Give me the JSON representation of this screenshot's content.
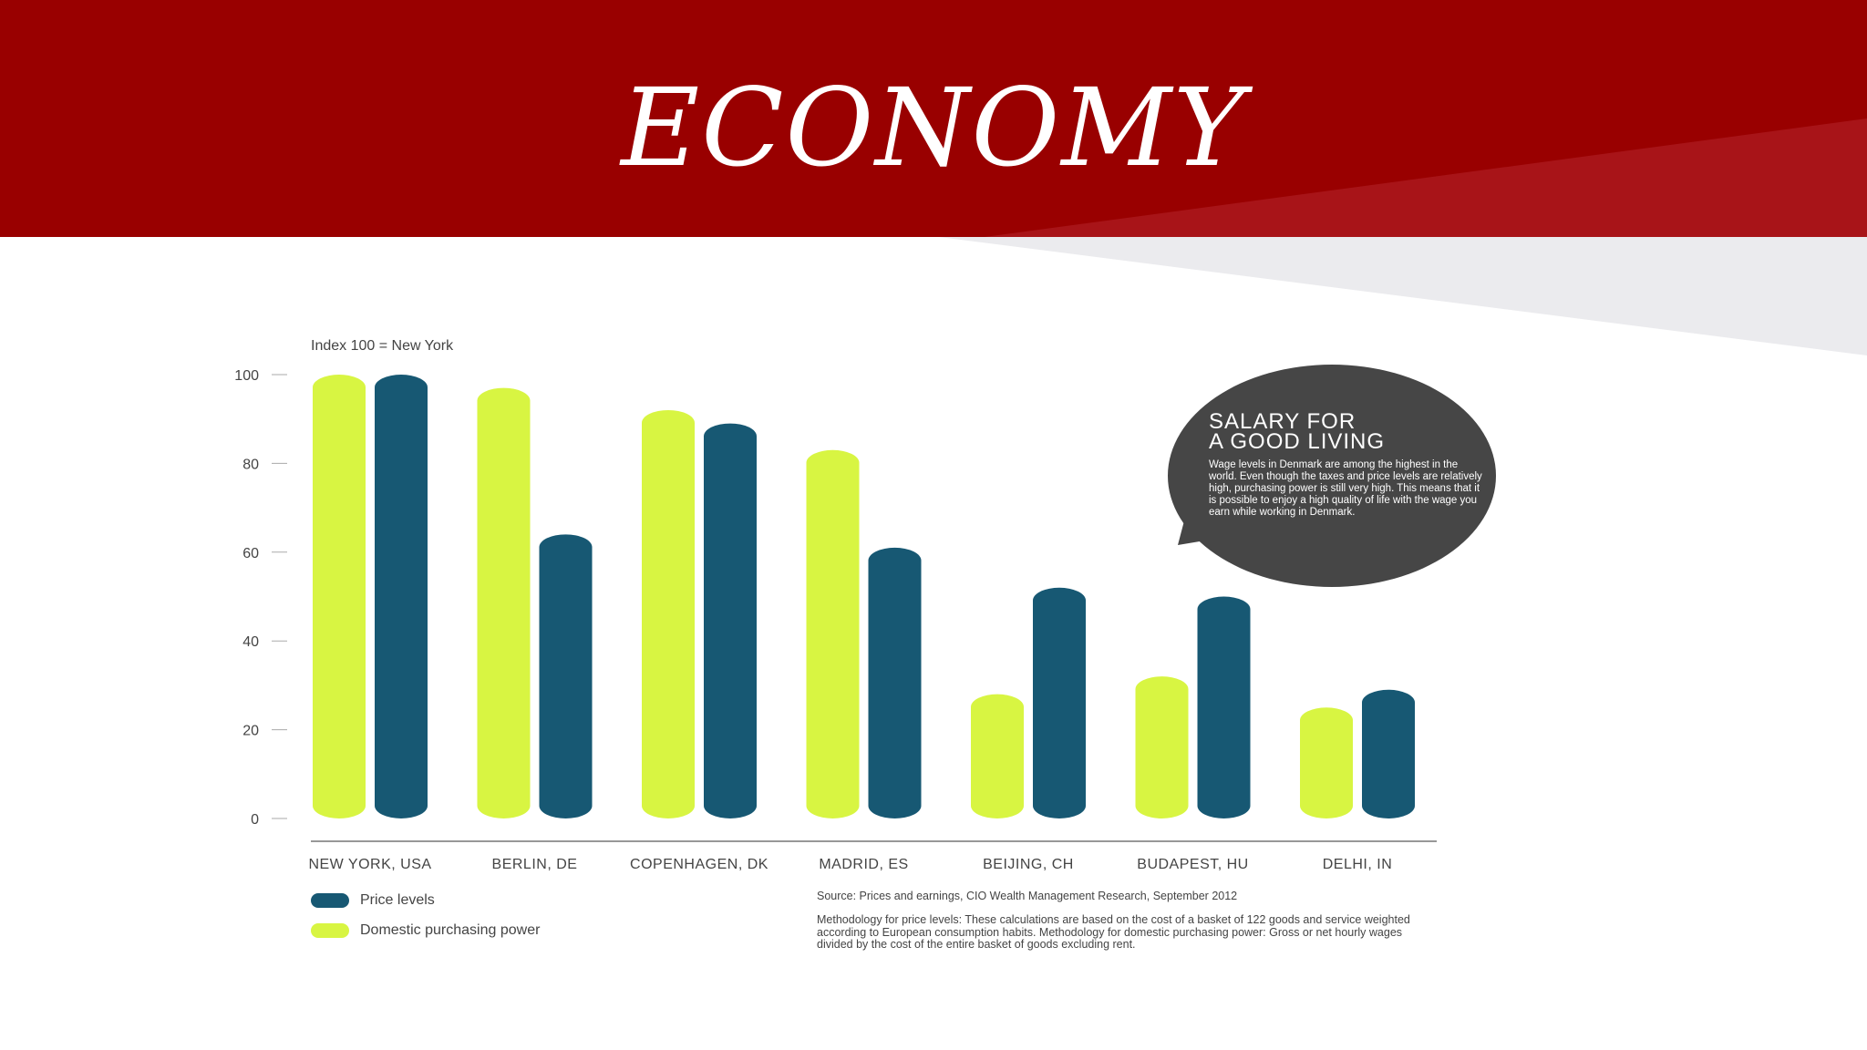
{
  "slide": {
    "title": "ECONOMY"
  },
  "chart_data": {
    "type": "bar",
    "title": "",
    "index_note": "Index 100 = New York",
    "categories": [
      "NEW YORK, USA",
      "BERLIN, DE",
      "COPENHAGEN, DK",
      "MADRID, ES",
      "BEIJING, CH",
      "BUDAPEST, HU",
      "DELHI, IN"
    ],
    "series": [
      {
        "name": "Domestic purchasing power",
        "color": "#d8f542",
        "values": [
          100,
          97,
          92,
          83,
          28,
          32,
          25
        ]
      },
      {
        "name": "Price levels",
        "color": "#175873",
        "values": [
          100,
          64,
          89,
          61,
          52,
          50,
          29
        ]
      }
    ],
    "yticks": [
      0,
      20,
      40,
      60,
      80,
      100
    ],
    "ylim": [
      0,
      100
    ],
    "xlabel": "",
    "ylabel": "",
    "grid": false,
    "legend": [
      {
        "label": "Price levels",
        "color": "#175873"
      },
      {
        "label": "Domestic purchasing power",
        "color": "#d8f542"
      }
    ],
    "legend_position": "bottom-left"
  },
  "callout": {
    "title": "SALARY FOR\nA GOOD LIVING",
    "body": "Wage levels in Denmark are among the highest in the world. Even though the taxes and price levels are relatively high, purchasing power is still very high. This means that it is possible to enjoy a high quality of life with the wage you earn while working in Denmark."
  },
  "footnotes": {
    "source": "Source: Prices and earnings, CIO Wealth Management Research, September 2012",
    "methodology": "Methodology for price levels: These calculations are based on the cost of a basket of 122 goods and service weighted according to European consumption habits. Methodology for domestic purchasing power: Gross or net hourly wages divided by the cost of the entire basket of goods excluding rent."
  }
}
